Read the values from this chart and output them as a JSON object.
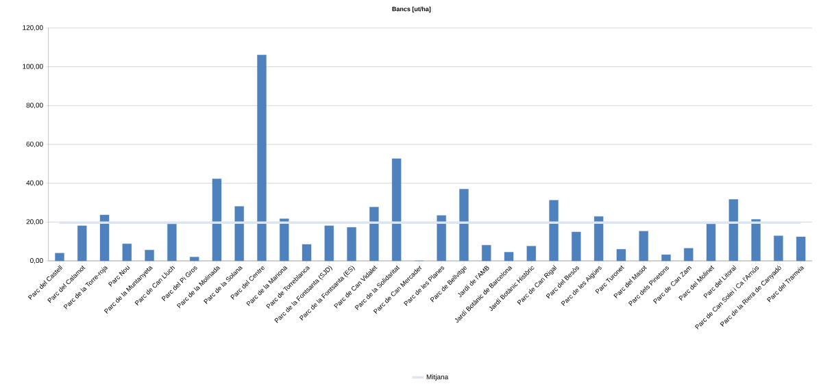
{
  "chart_data": {
    "type": "bar",
    "title": "Bancs [ut/ha]",
    "categories": [
      "Parc del Castell",
      "Parc del Calamot",
      "Parc de la Torre-roja",
      "Parc Nou",
      "Parc de la Muntanyeta",
      "Parc de Can Lluch",
      "Parc del Pi Gros",
      "Parc de la Molinada",
      "Parc de la Solana",
      "Parc del Centre",
      "Parc de la Mariona",
      "Parc de Torreblanca",
      "Parc de la Fontsanta (SJD)",
      "Parc de la Fontsanta (ES)",
      "Parc de Can Vidalet",
      "Parc de la Solidaritat",
      "Parc de Can Mercader",
      "Parc de les Planes",
      "Parc de Bellvitge",
      "Jardí de l'AMB",
      "Jardí Botànic de Barcelona",
      "Jardí Botànic Històric",
      "Parc de Can Rigal",
      "Parc del Besòs",
      "Parc de les Aigües",
      "Parc Turonet",
      "Parc del Masot",
      "Parc dels Pinetons",
      "Parc de Can Zam",
      "Parc del Molinet",
      "Parc del Litoral",
      "Parc de Can Solei i Ca l'Arnús",
      "Parc de la Riera de Canyadó",
      "Parc del Tramvia"
    ],
    "values": [
      4.0,
      18.1,
      23.7,
      8.8,
      5.6,
      19.0,
      2.0,
      42.3,
      28.1,
      106.1,
      21.7,
      8.5,
      18.1,
      17.3,
      27.7,
      52.7,
      0,
      23.4,
      37.0,
      8.1,
      4.5,
      7.6,
      31.3,
      14.9,
      22.9,
      6.0,
      15.3,
      3.2,
      6.5,
      19.0,
      31.7,
      21.4,
      12.9,
      12.4
    ],
    "color": "#4f81bd",
    "ylim": [
      0,
      120
    ],
    "yticks": [
      {
        "value": 0,
        "label": "0,00"
      },
      {
        "value": 20,
        "label": "20,00"
      },
      {
        "value": 40,
        "label": "40,00"
      },
      {
        "value": 60,
        "label": "60,00"
      },
      {
        "value": 80,
        "label": "80,00"
      },
      {
        "value": 100,
        "label": "100,00"
      },
      {
        "value": 120,
        "label": "120,00"
      }
    ],
    "grid": "y",
    "legend": "bottom",
    "ref_lines": [
      {
        "axis": "y",
        "value": 19.7,
        "label": "Mitjana",
        "color": "#dce6f2"
      }
    ]
  }
}
